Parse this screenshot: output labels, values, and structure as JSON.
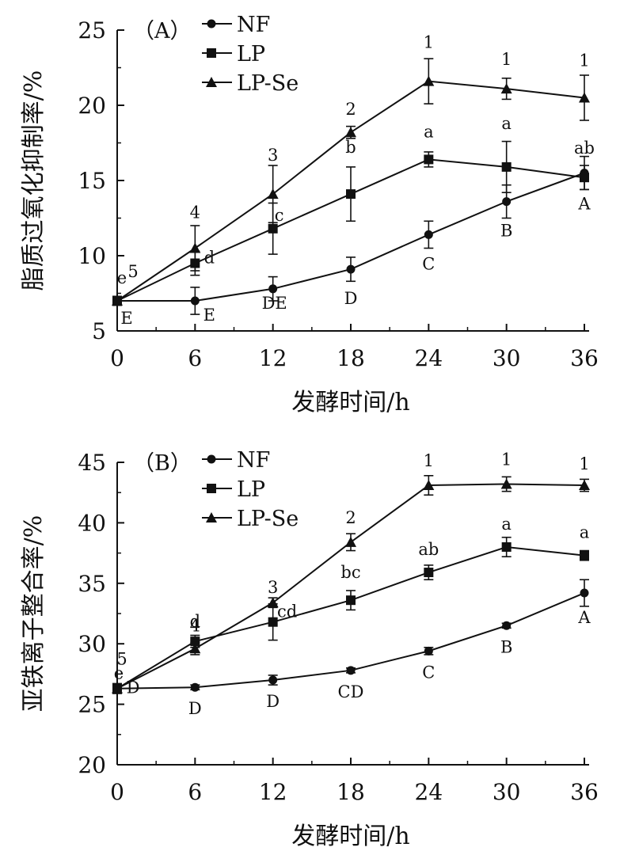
{
  "chart_data": [
    {
      "type": "line",
      "panel_label": "（A）",
      "xlabel": "发酵时间/h",
      "ylabel": "脂质过氧化抑制率/%",
      "x": [
        0,
        6,
        12,
        18,
        24,
        30,
        36
      ],
      "xlim": [
        0,
        36
      ],
      "ylim": [
        5,
        25
      ],
      "xticks": [
        "0",
        "6",
        "12",
        "18",
        "24",
        "30",
        "36"
      ],
      "yticks": [
        "5",
        "10",
        "15",
        "20",
        "25"
      ],
      "grid": false,
      "legend_position": "top-left",
      "series": [
        {
          "name": "NF",
          "marker": "circle",
          "values": [
            7.0,
            7.0,
            7.8,
            9.1,
            11.4,
            13.6,
            15.5
          ],
          "errors": [
            0.3,
            0.9,
            0.8,
            0.8,
            0.9,
            1.1,
            1.1
          ],
          "labels": [
            "E",
            "E",
            "DE",
            "D",
            "C",
            "B",
            "A"
          ]
        },
        {
          "name": "LP",
          "marker": "square",
          "values": [
            7.0,
            9.5,
            11.8,
            14.1,
            16.4,
            15.9,
            15.2
          ],
          "errors": [
            0.3,
            0.8,
            1.7,
            1.8,
            0.5,
            1.7,
            0.8
          ],
          "labels": [
            "e",
            "d",
            "c",
            "b",
            "a",
            "a",
            "ab"
          ]
        },
        {
          "name": "LP-Se",
          "marker": "triangle",
          "values": [
            7.0,
            10.5,
            14.1,
            18.2,
            21.6,
            21.1,
            20.5
          ],
          "errors": [
            0.3,
            1.5,
            1.9,
            0.4,
            1.5,
            0.7,
            1.5
          ],
          "labels": [
            "5",
            "4",
            "3",
            "2",
            "1",
            "1",
            "1"
          ]
        }
      ]
    },
    {
      "type": "line",
      "panel_label": "（B）",
      "xlabel": "发酵时间/h",
      "ylabel": "亚铁离子整合率/%",
      "x": [
        0,
        6,
        12,
        18,
        24,
        30,
        36
      ],
      "xlim": [
        0,
        36
      ],
      "ylim": [
        20,
        45
      ],
      "xticks": [
        "0",
        "6",
        "12",
        "18",
        "24",
        "30",
        "36"
      ],
      "yticks": [
        "20",
        "25",
        "30",
        "35",
        "40",
        "45"
      ],
      "grid": false,
      "legend_position": "top-left",
      "series": [
        {
          "name": "NF",
          "marker": "circle",
          "values": [
            26.3,
            26.4,
            27.0,
            27.8,
            29.4,
            31.5,
            34.2
          ],
          "errors": [
            0.4,
            0.2,
            0.4,
            0.2,
            0.3,
            0.2,
            1.1
          ],
          "labels": [
            "D",
            "D",
            "D",
            "CD",
            "C",
            "B",
            "A"
          ]
        },
        {
          "name": "LP",
          "marker": "square",
          "values": [
            26.3,
            30.2,
            31.8,
            33.6,
            35.9,
            38.0,
            37.3
          ],
          "errors": [
            0.4,
            0.5,
            1.5,
            0.8,
            0.6,
            0.8,
            0.4
          ],
          "labels": [
            "e",
            "d",
            "cd",
            "bc",
            "ab",
            "a",
            "a"
          ]
        },
        {
          "name": "LP-Se",
          "marker": "triangle",
          "values": [
            26.3,
            29.6,
            33.4,
            38.4,
            43.1,
            43.2,
            43.1
          ],
          "errors": [
            0.4,
            0.5,
            0.4,
            0.7,
            0.8,
            0.6,
            0.5
          ],
          "labels": [
            "5",
            "4",
            "3",
            "2",
            "1",
            "1",
            "1"
          ]
        }
      ]
    }
  ]
}
